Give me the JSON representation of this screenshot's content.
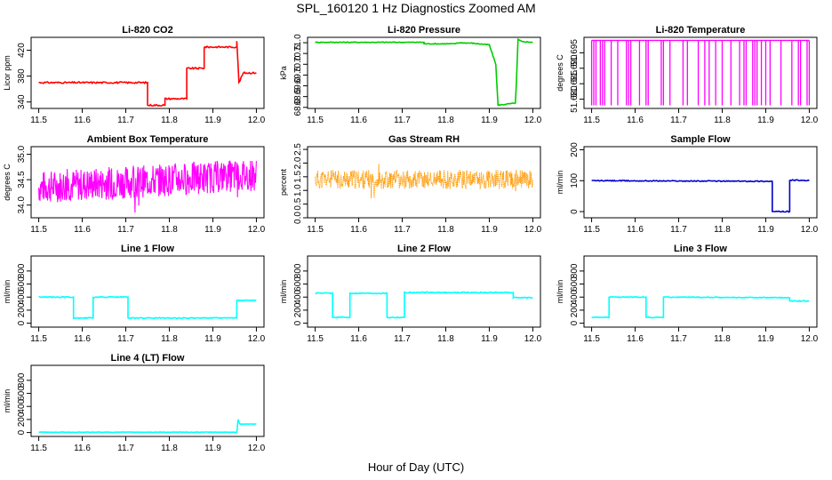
{
  "figure": {
    "title": "SPL_160120  1 Hz Diagnostics Zoomed AM",
    "xlabel": "Hour of Day (UTC)"
  },
  "chart_data": [
    {
      "type": "line",
      "title": "Li-820 CO2",
      "ylabel": "Licor ppm",
      "color": "#ff0000",
      "xlim": [
        11.5,
        12.0
      ],
      "ylim": [
        330,
        440
      ],
      "xticks": [
        "11.5",
        "11.6",
        "11.7",
        "11.8",
        "11.9",
        "12.0"
      ],
      "yticks": [
        "340",
        "380",
        "420"
      ],
      "noise": 1.2,
      "series": [
        {
          "points": [
            [
              11.5,
              370
            ],
            [
              11.75,
              370
            ],
            [
              11.75,
              335
            ],
            [
              11.79,
              335
            ],
            [
              11.79,
              345
            ],
            [
              11.84,
              345
            ],
            [
              11.84,
              392
            ],
            [
              11.88,
              392
            ],
            [
              11.88,
              425
            ],
            [
              11.955,
              425
            ],
            [
              11.955,
              435
            ],
            [
              11.96,
              370
            ],
            [
              11.97,
              385
            ],
            [
              12.0,
              385
            ]
          ]
        }
      ]
    },
    {
      "type": "line",
      "title": "Li-820 Pressure",
      "ylabel": "kPa",
      "color": "#00cc00",
      "xlim": [
        11.5,
        12.0
      ],
      "ylim": [
        67.95,
        71.25
      ],
      "xticks": [
        "11.5",
        "11.6",
        "11.7",
        "11.8",
        "11.9",
        "12.0"
      ],
      "yticks": [
        "68.0",
        "68.5",
        "69.0",
        "69.5",
        "70.0",
        "70.5",
        "71.0"
      ],
      "noise": 0.02,
      "series": [
        {
          "points": [
            [
              11.5,
              71.02
            ],
            [
              11.75,
              71.02
            ],
            [
              11.75,
              70.95
            ],
            [
              11.82,
              70.95
            ],
            [
              11.83,
              71.0
            ],
            [
              11.86,
              70.98
            ],
            [
              11.9,
              70.9
            ],
            [
              11.915,
              70.0
            ],
            [
              11.92,
              68.1
            ],
            [
              11.96,
              68.2
            ],
            [
              11.962,
              69.0
            ],
            [
              11.966,
              71.15
            ],
            [
              11.975,
              71.05
            ],
            [
              12.0,
              71.02
            ]
          ]
        }
      ]
    },
    {
      "type": "line",
      "title": "Li-820 Temperature",
      "ylabel": "degrees C",
      "color": "#ff00ff",
      "xlim": [
        11.5,
        12.0
      ],
      "ylim": [
        51.677,
        51.7
      ],
      "xticks": [
        "11.5",
        "11.6",
        "11.7",
        "11.8",
        "11.9",
        "12.0"
      ],
      "yticks": [
        "51.680",
        "51.685",
        "51.690",
        "51.695"
      ],
      "spikes": {
        "base": 51.699,
        "low": 51.678,
        "dropouts": [
          11.5,
          11.505,
          11.51,
          11.52,
          11.525,
          11.53,
          11.545,
          11.56,
          11.58,
          11.585,
          11.59,
          11.61,
          11.625,
          11.63,
          11.66,
          11.665,
          11.68,
          11.71,
          11.72,
          11.745,
          11.76,
          11.77,
          11.785,
          11.8,
          11.82,
          11.84,
          11.85,
          11.855,
          11.87,
          11.875,
          11.88,
          11.89,
          11.9,
          11.91,
          11.935,
          11.96,
          11.975,
          11.98,
          11.995,
          12.0
        ]
      },
      "series": []
    },
    {
      "type": "line",
      "title": "Ambient Box Temperature",
      "ylabel": "degrees C",
      "color": "#ff00ff",
      "xlim": [
        11.5,
        12.0
      ],
      "ylim": [
        33.75,
        35.15
      ],
      "xticks": [
        "11.5",
        "11.6",
        "11.7",
        "11.8",
        "11.9",
        "12.0"
      ],
      "yticks": [
        "34.0",
        "34.5",
        "35.0"
      ],
      "band": {
        "x0": 11.5,
        "x1": 12.0,
        "center0": 34.35,
        "center1": 34.6,
        "halfwidth": 0.32,
        "seed": 7
      },
      "series": []
    },
    {
      "type": "scatter",
      "title": "Gas Stream RH",
      "ylabel": "percent",
      "color": "#ff9900",
      "xlim": [
        11.5,
        12.0
      ],
      "ylim": [
        0,
        2.6
      ],
      "xticks": [
        "11.5",
        "11.6",
        "11.7",
        "11.8",
        "11.9",
        "12.0"
      ],
      "yticks": [
        "0.0",
        "0.5",
        "1.0",
        "1.5",
        "2.0",
        "2.5"
      ],
      "band": {
        "x0": 11.5,
        "x1": 12.0,
        "center0": 1.4,
        "center1": 1.4,
        "halfwidth": 0.35,
        "seed": 11
      },
      "series": []
    },
    {
      "type": "line",
      "title": "Sample Flow",
      "ylabel": "ml/min",
      "color": "#0000cc",
      "xlim": [
        11.5,
        12.0
      ],
      "ylim": [
        -20,
        210
      ],
      "xticks": [
        "11.5",
        "11.6",
        "11.7",
        "11.8",
        "11.9",
        "12.0"
      ],
      "yticks": [
        "0",
        "100",
        "200"
      ],
      "noise": 1.5,
      "series": [
        {
          "points": [
            [
              11.5,
              100
            ],
            [
              11.915,
              98
            ],
            [
              11.915,
              0
            ],
            [
              11.955,
              0
            ],
            [
              11.955,
              102
            ],
            [
              12.0,
              100
            ]
          ]
        }
      ]
    },
    {
      "type": "line",
      "title": "Line 1 Flow",
      "ylabel": "ml/min",
      "color": "#00ffff",
      "xlim": [
        11.5,
        12.0
      ],
      "ylim": [
        -60,
        1030
      ],
      "xticks": [
        "11.5",
        "11.6",
        "11.7",
        "11.8",
        "11.9",
        "12.0"
      ],
      "yticks": [
        "0",
        "200",
        "400",
        "600",
        "800"
      ],
      "noise": 8,
      "series": [
        {
          "points": [
            [
              11.5,
              400
            ],
            [
              11.58,
              400
            ],
            [
              11.58,
              80
            ],
            [
              11.625,
              80
            ],
            [
              11.625,
              400
            ],
            [
              11.705,
              400
            ],
            [
              11.705,
              80
            ],
            [
              11.955,
              80
            ],
            [
              11.955,
              350
            ],
            [
              12.0,
              350
            ]
          ]
        }
      ]
    },
    {
      "type": "line",
      "title": "Line 2 Flow",
      "ylabel": "ml/min",
      "color": "#00ffff",
      "xlim": [
        11.5,
        12.0
      ],
      "ylim": [
        -60,
        1030
      ],
      "xticks": [
        "11.5",
        "11.6",
        "11.7",
        "11.8",
        "11.9",
        "12.0"
      ],
      "yticks": [
        "0",
        "200",
        "400",
        "600",
        "800"
      ],
      "noise": 8,
      "series": [
        {
          "points": [
            [
              11.5,
              460
            ],
            [
              11.54,
              460
            ],
            [
              11.54,
              90
            ],
            [
              11.58,
              90
            ],
            [
              11.58,
              460
            ],
            [
              11.665,
              460
            ],
            [
              11.665,
              90
            ],
            [
              11.705,
              90
            ],
            [
              11.705,
              470
            ],
            [
              11.955,
              470
            ],
            [
              11.955,
              390
            ],
            [
              12.0,
              390
            ]
          ]
        }
      ]
    },
    {
      "type": "line",
      "title": "Line 3 Flow",
      "ylabel": "ml/min",
      "color": "#00ffff",
      "xlim": [
        11.5,
        12.0
      ],
      "ylim": [
        -60,
        1030
      ],
      "xticks": [
        "11.5",
        "11.6",
        "11.7",
        "11.8",
        "11.9",
        "12.0"
      ],
      "yticks": [
        "0",
        "200",
        "400",
        "600",
        "800"
      ],
      "noise": 6,
      "series": [
        {
          "points": [
            [
              11.5,
              90
            ],
            [
              11.54,
              90
            ],
            [
              11.54,
              400
            ],
            [
              11.625,
              400
            ],
            [
              11.625,
              90
            ],
            [
              11.665,
              90
            ],
            [
              11.665,
              400
            ],
            [
              11.955,
              390
            ],
            [
              11.955,
              340
            ],
            [
              12.0,
              340
            ]
          ]
        }
      ]
    },
    {
      "type": "line",
      "title": "Line 4 (LT) Flow",
      "ylabel": "ml/min",
      "color": "#00ffff",
      "xlim": [
        11.5,
        12.0
      ],
      "ylim": [
        -60,
        1030
      ],
      "xticks": [
        "11.5",
        "11.6",
        "11.7",
        "11.8",
        "11.9",
        "12.0"
      ],
      "yticks": [
        "0",
        "200",
        "400",
        "600",
        "800"
      ],
      "noise": 3,
      "series": [
        {
          "points": [
            [
              11.5,
              5
            ],
            [
              11.955,
              5
            ],
            [
              11.958,
              200
            ],
            [
              11.962,
              130
            ],
            [
              12.0,
              130
            ]
          ]
        }
      ]
    }
  ]
}
